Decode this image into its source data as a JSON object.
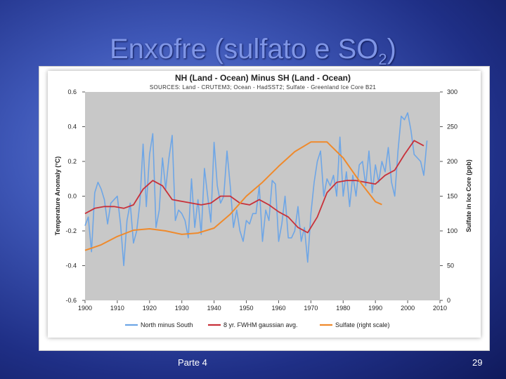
{
  "slide": {
    "title_main": "Enxofre (sulfato e SO",
    "title_sub": "2",
    "title_end": ")",
    "footer_left": "Parte 4",
    "page_number": "29"
  },
  "chart_data": {
    "type": "line",
    "title": "NH (Land - Ocean) Minus SH (Land - Ocean)",
    "subtitle": "SOURCES: Land - CRUTEM3; Ocean - HadSST2; Sulfate - Greenland Ice Core B21",
    "xlabel": "",
    "ylabel": "Temperature Anomaly (°C)",
    "y2label": "Sulfate in Ice Core (ppb)",
    "xlim": [
      1900,
      2010
    ],
    "ylim": [
      -0.6,
      0.6
    ],
    "y2lim": [
      0,
      300
    ],
    "x_ticks": [
      "1900",
      "1910",
      "1920",
      "1930",
      "1940",
      "1950",
      "1960",
      "1970",
      "1980",
      "1990",
      "2000",
      "2010"
    ],
    "y_ticks": [
      "0.6",
      "0.4",
      "0.2",
      "0.0",
      "-0.2",
      "-0.4",
      "-0.6"
    ],
    "y2_ticks": [
      "300",
      "250",
      "200",
      "150",
      "100",
      "50",
      "0"
    ],
    "grid": false,
    "legend_position": "bottom",
    "colors": {
      "plot_bg": "#c8c8c8",
      "north": "#6ea6e6",
      "gauss": "#c8313a",
      "sulfate": "#ef8a2c"
    },
    "series": [
      {
        "name": "North minus South",
        "axis": "left",
        "x": [
          1900,
          1901,
          1902,
          1903,
          1904,
          1905,
          1906,
          1907,
          1908,
          1909,
          1910,
          1911,
          1912,
          1913,
          1914,
          1915,
          1916,
          1917,
          1918,
          1919,
          1920,
          1921,
          1922,
          1923,
          1924,
          1925,
          1926,
          1927,
          1928,
          1929,
          1930,
          1931,
          1932,
          1933,
          1934,
          1935,
          1936,
          1937,
          1938,
          1939,
          1940,
          1941,
          1942,
          1943,
          1944,
          1945,
          1946,
          1947,
          1948,
          1949,
          1950,
          1951,
          1952,
          1953,
          1954,
          1955,
          1956,
          1957,
          1958,
          1959,
          1960,
          1961,
          1962,
          1963,
          1964,
          1965,
          1966,
          1967,
          1968,
          1969,
          1970,
          1971,
          1972,
          1973,
          1974,
          1975,
          1976,
          1977,
          1978,
          1979,
          1980,
          1981,
          1982,
          1983,
          1984,
          1985,
          1986,
          1987,
          1988,
          1989,
          1990,
          1991,
          1992,
          1993,
          1994,
          1995,
          1996,
          1997,
          1998,
          1999,
          2000,
          2001,
          2002,
          2003,
          2004,
          2005,
          2006
        ],
        "values": [
          -0.17,
          -0.12,
          -0.32,
          0.02,
          0.08,
          0.04,
          -0.02,
          -0.16,
          -0.04,
          -0.02,
          0.0,
          -0.16,
          -0.4,
          -0.14,
          -0.04,
          -0.27,
          -0.2,
          -0.04,
          0.3,
          -0.06,
          0.24,
          0.36,
          -0.18,
          -0.08,
          0.22,
          0.04,
          0.22,
          0.35,
          -0.14,
          -0.08,
          -0.1,
          -0.14,
          -0.24,
          0.1,
          -0.18,
          -0.02,
          -0.22,
          0.16,
          0.0,
          -0.15,
          0.31,
          0.06,
          -0.04,
          0.0,
          0.26,
          0.06,
          -0.18,
          -0.08,
          -0.2,
          -0.26,
          -0.14,
          -0.16,
          -0.1,
          -0.1,
          0.06,
          -0.26,
          -0.08,
          -0.14,
          0.09,
          0.07,
          -0.26,
          -0.16,
          0.0,
          -0.24,
          -0.24,
          -0.2,
          -0.06,
          -0.26,
          -0.18,
          -0.38,
          -0.1,
          0.08,
          0.2,
          0.26,
          0.0,
          0.1,
          0.06,
          0.12,
          0.0,
          0.34,
          0.0,
          0.14,
          -0.06,
          0.12,
          0.0,
          0.18,
          0.2,
          0.06,
          0.26,
          0.02,
          0.18,
          0.08,
          0.2,
          0.14,
          0.28,
          0.08,
          0.0,
          0.26,
          0.46,
          0.44,
          0.48,
          0.38,
          0.24,
          0.22,
          0.2,
          0.12,
          0.32
        ]
      },
      {
        "name": "8 yr. FWHM gaussian avg.",
        "axis": "left",
        "x": [
          1900,
          1903,
          1906,
          1909,
          1912,
          1915,
          1918,
          1921,
          1924,
          1927,
          1930,
          1933,
          1936,
          1939,
          1942,
          1945,
          1948,
          1951,
          1954,
          1957,
          1960,
          1963,
          1966,
          1969,
          1972,
          1975,
          1978,
          1981,
          1984,
          1987,
          1990,
          1993,
          1996,
          1999,
          2002,
          2005
        ],
        "values": [
          -0.1,
          -0.07,
          -0.06,
          -0.06,
          -0.07,
          -0.05,
          0.04,
          0.09,
          0.06,
          -0.02,
          -0.03,
          -0.04,
          -0.05,
          -0.04,
          0.0,
          0.0,
          -0.04,
          -0.05,
          -0.02,
          -0.05,
          -0.09,
          -0.12,
          -0.18,
          -0.21,
          -0.12,
          0.02,
          0.08,
          0.09,
          0.09,
          0.08,
          0.07,
          0.12,
          0.15,
          0.24,
          0.32,
          0.29
        ]
      },
      {
        "name": "Sulfate (right scale)",
        "axis": "right",
        "x": [
          1900,
          1905,
          1910,
          1915,
          1920,
          1925,
          1930,
          1935,
          1940,
          1945,
          1950,
          1955,
          1960,
          1965,
          1970,
          1975,
          1980,
          1985,
          1990,
          1992
        ],
        "values": [
          72,
          80,
          92,
          101,
          103,
          100,
          95,
          97,
          104,
          124,
          150,
          170,
          193,
          214,
          228,
          228,
          205,
          172,
          142,
          138
        ]
      }
    ]
  }
}
